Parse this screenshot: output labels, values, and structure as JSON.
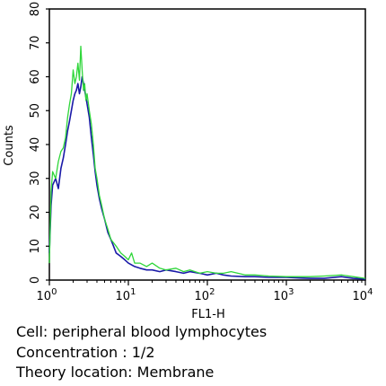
{
  "chart_data": {
    "type": "line",
    "xlabel": "FL1-H",
    "ylabel": "Counts",
    "x_scale": "log",
    "xlim": [
      1,
      10000
    ],
    "ylim": [
      0,
      80
    ],
    "y_ticks": [
      0,
      10,
      20,
      30,
      40,
      50,
      60,
      70,
      80
    ],
    "x_ticks": [
      {
        "base": "10",
        "exp": "0",
        "value": 1
      },
      {
        "base": "10",
        "exp": "1",
        "value": 10
      },
      {
        "base": "10",
        "exp": "2",
        "value": 100
      },
      {
        "base": "10",
        "exp": "3",
        "value": 1000
      },
      {
        "base": "10",
        "exp": "4",
        "value": 10000
      }
    ],
    "grid": false,
    "series": [
      {
        "color": "#1a1aa8",
        "x": [
          1.0,
          1.05,
          1.1,
          1.2,
          1.3,
          1.4,
          1.5,
          1.6,
          1.7,
          1.8,
          1.9,
          2.0,
          2.1,
          2.2,
          2.3,
          2.4,
          2.5,
          2.6,
          2.7,
          2.8,
          2.9,
          3.0,
          3.2,
          3.4,
          3.6,
          3.8,
          4.0,
          4.3,
          4.6,
          5.0,
          5.5,
          6.0,
          6.5,
          7.0,
          8.0,
          9.0,
          10,
          12,
          14,
          17,
          20,
          25,
          30,
          40,
          50,
          60,
          80,
          100,
          130,
          160,
          200,
          300,
          400,
          600,
          1000,
          1500,
          2000,
          3000,
          5000,
          7000,
          10000
        ],
        "values": [
          8,
          22,
          28,
          30,
          27,
          33,
          36,
          40,
          44,
          47,
          50,
          53,
          55,
          56,
          58,
          55,
          57,
          60,
          58,
          56,
          54,
          52,
          48,
          42,
          37,
          32,
          28,
          24,
          21,
          18,
          14,
          12,
          10,
          8,
          7,
          6,
          5,
          4,
          3.5,
          3,
          3,
          2.5,
          3,
          2.5,
          2,
          2.5,
          2,
          1.5,
          2,
          1.5,
          1.2,
          1,
          1,
          0.8,
          0.8,
          0.6,
          0.5,
          0.5,
          1,
          0.5,
          0.3
        ]
      },
      {
        "color": "#2fd63a",
        "x": [
          1.0,
          1.05,
          1.1,
          1.2,
          1.3,
          1.4,
          1.5,
          1.6,
          1.7,
          1.8,
          1.9,
          2.0,
          2.1,
          2.2,
          2.3,
          2.4,
          2.5,
          2.6,
          2.7,
          2.8,
          2.9,
          3.0,
          3.2,
          3.4,
          3.6,
          3.8,
          4.0,
          4.3,
          4.6,
          5.0,
          5.5,
          6.0,
          6.5,
          7.0,
          8.0,
          9.0,
          10,
          11,
          12,
          14,
          17,
          20,
          25,
          30,
          40,
          50,
          60,
          80,
          100,
          130,
          160,
          200,
          300,
          400,
          600,
          1000,
          1500,
          2000,
          3000,
          5000,
          7000,
          10000
        ],
        "values": [
          5,
          26,
          32,
          30,
          35,
          38,
          39,
          42,
          48,
          52,
          55,
          62,
          58,
          60,
          64,
          59,
          69,
          62,
          56,
          58,
          53,
          55,
          50,
          46,
          40,
          33,
          30,
          25,
          22,
          18,
          15,
          12,
          11,
          10,
          8,
          7,
          6,
          8,
          5,
          5,
          4,
          5,
          3.5,
          3,
          3.5,
          2.5,
          3,
          2,
          2.5,
          2,
          2,
          2.5,
          1.5,
          1.5,
          1.2,
          1,
          1,
          1,
          1.2,
          1.5,
          1,
          0.5
        ]
      }
    ]
  },
  "caption": {
    "lines": [
      "Cell: peripheral blood lymphocytes",
      "Concentration : 1/2",
      "Theory location: Membrane"
    ]
  }
}
